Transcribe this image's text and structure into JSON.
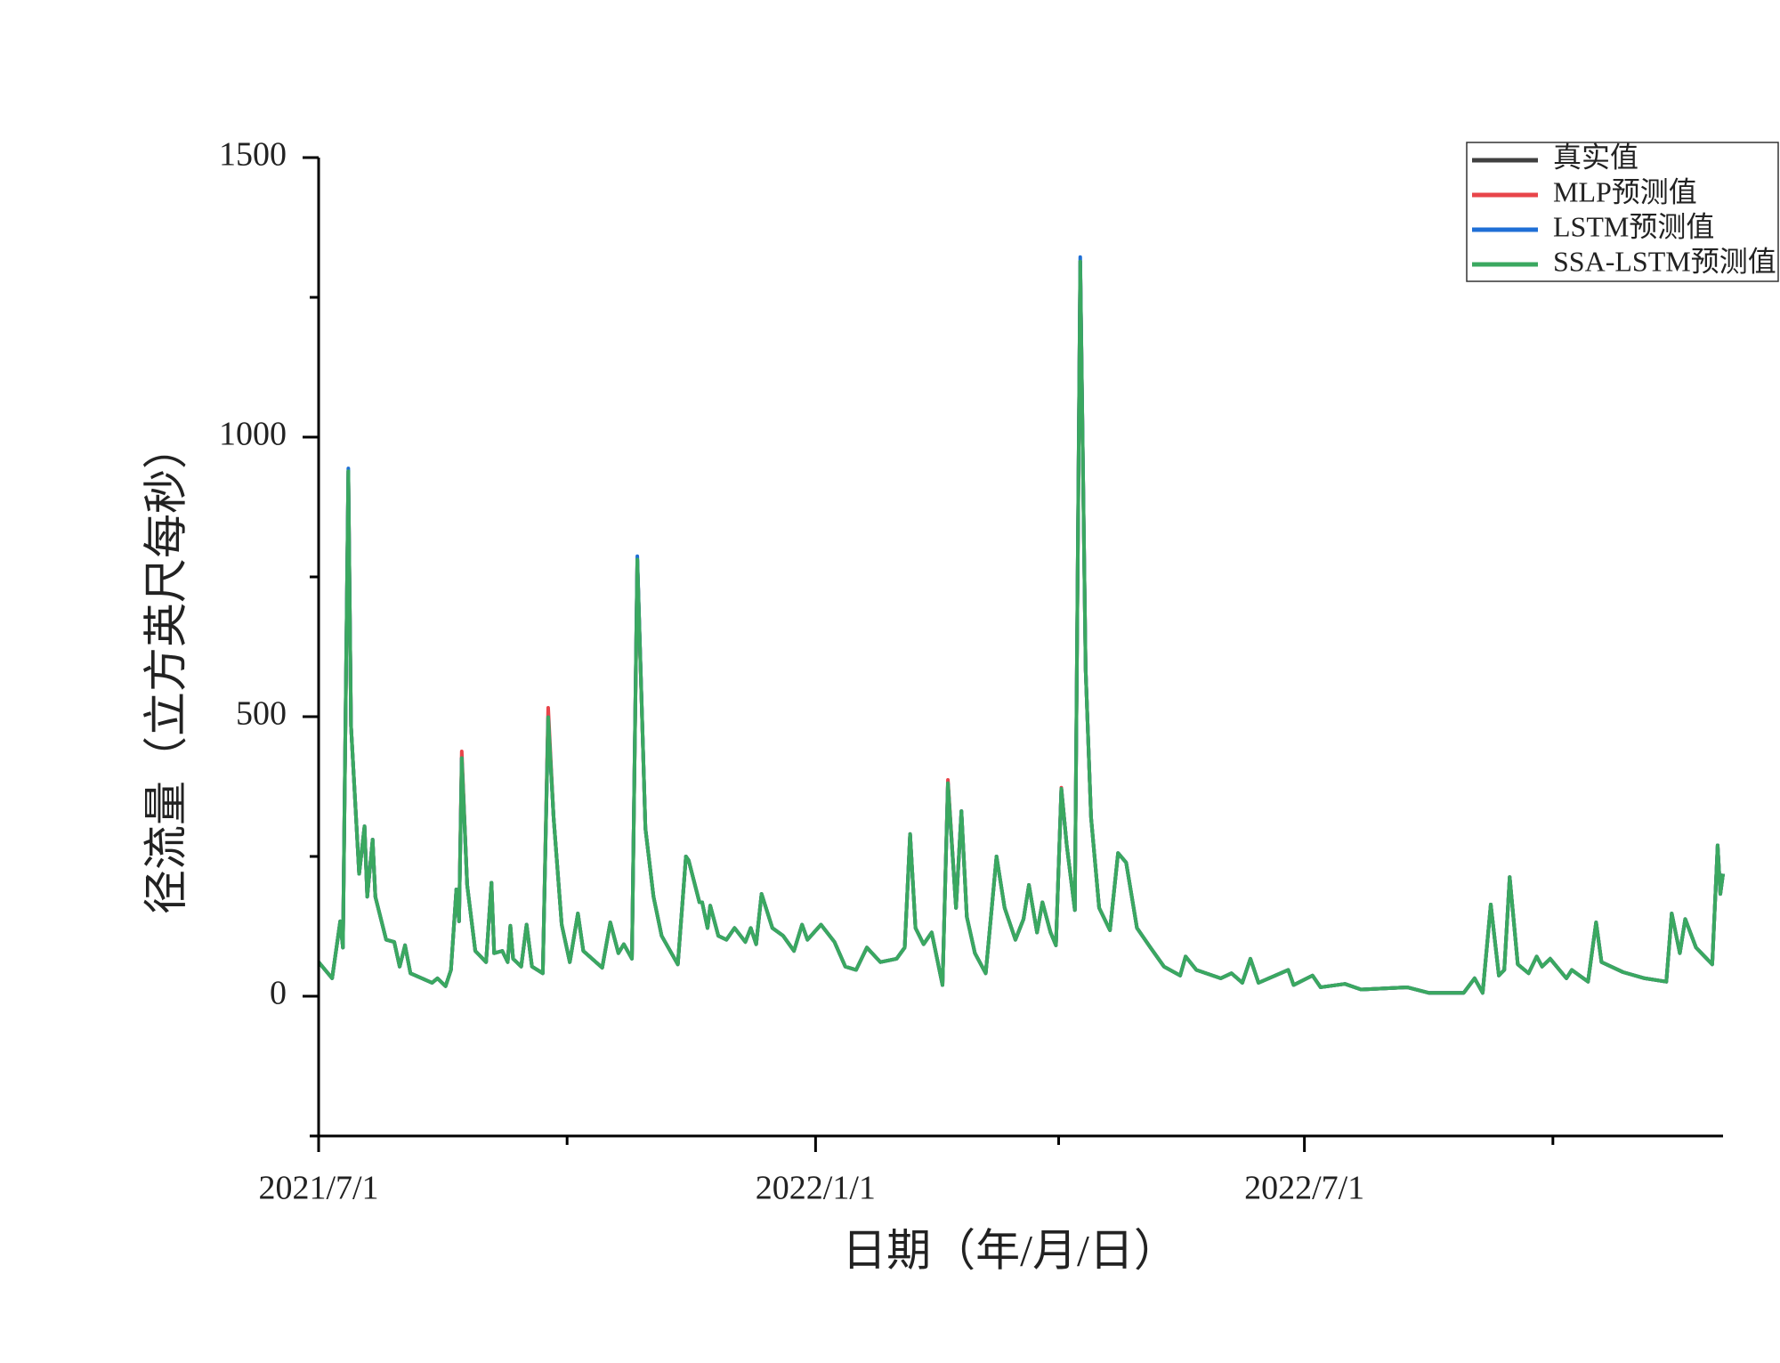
{
  "chart_data": {
    "type": "line",
    "x_label": "日期（年/月/日）",
    "y_label": "径流量（立方英尺每秒）",
    "x": [
      "2021/7/1",
      "2021/7/6",
      "2021/7/9",
      "2021/7/10",
      "2021/7/12",
      "2021/7/13",
      "2021/7/16",
      "2021/7/18",
      "2021/7/19",
      "2021/7/21",
      "2021/7/22",
      "2021/7/26",
      "2021/7/29",
      "2021/7/31",
      "2021/8/2",
      "2021/8/4",
      "2021/8/12",
      "2021/8/14",
      "2021/8/17",
      "2021/8/19",
      "2021/8/21",
      "2021/8/22",
      "2021/8/23",
      "2021/8/25",
      "2021/8/28",
      "2021/9/1",
      "2021/9/3",
      "2021/9/4",
      "2021/9/7",
      "2021/9/9",
      "2021/9/10",
      "2021/9/11",
      "2021/9/14",
      "2021/9/16",
      "2021/9/18",
      "2021/9/22",
      "2021/9/24",
      "2021/9/26",
      "2021/9/29",
      "2021/10/2",
      "2021/10/5",
      "2021/10/7",
      "2021/10/14",
      "2021/10/17",
      "2021/10/20",
      "2021/10/22",
      "2021/10/25",
      "2021/10/27",
      "2021/10/30",
      "2021/11/2",
      "2021/11/5",
      "2021/11/11",
      "2021/11/14",
      "2021/11/15",
      "2021/11/19",
      "2021/11/20",
      "2021/11/22",
      "2021/11/23",
      "2021/11/26",
      "2021/11/29",
      "2021/12/2",
      "2021/12/6",
      "2021/12/8",
      "2021/12/10",
      "2021/12/12",
      "2021/12/16",
      "2021/12/20",
      "2021/12/24",
      "2021/12/27",
      "2021/12/29",
      "2022/1/3",
      "2022/1/8",
      "2022/1/12",
      "2022/1/16",
      "2022/1/20",
      "2022/1/25",
      "2022/1/31",
      "2022/2/3",
      "2022/2/5",
      "2022/2/7",
      "2022/2/10",
      "2022/2/13",
      "2022/2/17",
      "2022/2/19",
      "2022/2/22",
      "2022/2/24",
      "2022/2/26",
      "2022/3/1",
      "2022/3/5",
      "2022/3/9",
      "2022/3/12",
      "2022/3/16",
      "2022/3/19",
      "2022/3/21",
      "2022/3/24",
      "2022/3/26",
      "2022/3/29",
      "2022/3/31",
      "2022/4/2",
      "2022/4/4",
      "2022/4/7",
      "2022/4/9",
      "2022/4/11",
      "2022/4/13",
      "2022/4/16",
      "2022/4/20",
      "2022/4/23",
      "2022/4/26",
      "2022/4/30",
      "2022/5/5",
      "2022/5/10",
      "2022/5/16",
      "2022/5/18",
      "2022/5/22",
      "2022/5/31",
      "2022/6/4",
      "2022/6/8",
      "2022/6/11",
      "2022/6/14",
      "2022/6/25",
      "2022/6/27",
      "2022/7/4",
      "2022/7/7",
      "2022/7/16",
      "2022/7/22",
      "2022/8/8",
      "2022/8/16",
      "2022/8/29",
      "2022/9/2",
      "2022/9/5",
      "2022/9/8",
      "2022/9/11",
      "2022/9/13",
      "2022/9/15",
      "2022/9/18",
      "2022/9/22",
      "2022/9/25",
      "2022/9/27",
      "2022/9/30",
      "2022/10/6",
      "2022/10/8",
      "2022/10/14",
      "2022/10/17",
      "2022/10/19",
      "2022/10/27",
      "2022/11/4",
      "2022/11/12",
      "2022/11/14",
      "2022/11/17",
      "2022/11/19",
      "2022/11/23",
      "2022/11/29",
      "2022/12/1",
      "2022/12/2",
      "2022/12/3"
    ],
    "series": [
      {
        "name": "真实值",
        "color": "#404040",
        "values": [
          61,
          32,
          134,
          87,
          939,
          483,
          219,
          304,
          178,
          280,
          178,
          101,
          97,
          53,
          91,
          41,
          24,
          32,
          18,
          47,
          191,
          134,
          426,
          199,
          81,
          61,
          203,
          77,
          81,
          61,
          126,
          67,
          53,
          128,
          53,
          41,
          499,
          320,
          128,
          61,
          148,
          81,
          51,
          132,
          77,
          93,
          67,
          781,
          300,
          178,
          108,
          57,
          250,
          243,
          168,
          168,
          122,
          162,
          108,
          101,
          122,
          97,
          122,
          93,
          183,
          122,
          108,
          81,
          128,
          101,
          128,
          97,
          53,
          47,
          87,
          61,
          67,
          87,
          290,
          122,
          93,
          114,
          20,
          381,
          158,
          331,
          142,
          77,
          41,
          250,
          158,
          101,
          138,
          199,
          114,
          168,
          114,
          91,
          371,
          270,
          154,
          1314,
          584,
          320,
          158,
          118,
          256,
          239,
          122,
          87,
          53,
          37,
          71,
          47,
          32,
          41,
          24,
          67,
          24,
          47,
          20,
          37,
          16,
          22,
          12,
          16,
          6,
          6,
          32,
          6,
          164,
          37,
          47,
          213,
          57,
          41,
          71,
          53,
          67,
          32,
          47,
          26,
          132,
          61,
          43,
          32,
          26,
          148,
          77,
          138,
          87,
          57,
          270,
          183,
          219
        ]
      },
      {
        "name": "MLP预测值",
        "color": "#e8454a",
        "values": [
          61,
          32,
          134,
          87,
          939,
          483,
          219,
          304,
          178,
          280,
          178,
          101,
          97,
          53,
          91,
          41,
          24,
          32,
          18,
          47,
          191,
          134,
          438,
          199,
          81,
          61,
          203,
          77,
          81,
          61,
          126,
          67,
          53,
          128,
          53,
          41,
          516,
          320,
          128,
          61,
          148,
          81,
          51,
          132,
          77,
          93,
          67,
          781,
          300,
          178,
          108,
          57,
          250,
          243,
          168,
          168,
          122,
          162,
          108,
          101,
          122,
          97,
          122,
          93,
          183,
          122,
          108,
          81,
          128,
          101,
          128,
          97,
          53,
          47,
          87,
          61,
          67,
          87,
          290,
          122,
          93,
          114,
          20,
          387,
          158,
          331,
          142,
          77,
          41,
          250,
          158,
          101,
          138,
          199,
          114,
          168,
          114,
          91,
          373,
          270,
          154,
          1314,
          584,
          320,
          158,
          118,
          256,
          239,
          122,
          87,
          53,
          37,
          71,
          47,
          32,
          41,
          24,
          67,
          24,
          47,
          20,
          37,
          16,
          22,
          12,
          16,
          6,
          6,
          32,
          6,
          164,
          37,
          47,
          213,
          57,
          41,
          71,
          53,
          67,
          32,
          47,
          26,
          132,
          61,
          43,
          32,
          26,
          148,
          77,
          138,
          87,
          57,
          270,
          183,
          219
        ]
      },
      {
        "name": "LSTM预测值",
        "color": "#1f6fd6",
        "values": [
          61,
          32,
          134,
          87,
          944,
          483,
          219,
          304,
          178,
          280,
          178,
          101,
          97,
          53,
          91,
          41,
          24,
          32,
          18,
          47,
          191,
          134,
          426,
          199,
          81,
          61,
          203,
          77,
          81,
          61,
          126,
          67,
          53,
          128,
          53,
          41,
          499,
          320,
          128,
          61,
          148,
          81,
          51,
          132,
          77,
          93,
          67,
          787,
          300,
          178,
          108,
          57,
          250,
          243,
          168,
          168,
          122,
          162,
          108,
          101,
          122,
          97,
          122,
          93,
          183,
          122,
          108,
          81,
          128,
          101,
          128,
          97,
          53,
          47,
          87,
          61,
          67,
          87,
          290,
          122,
          93,
          114,
          20,
          381,
          158,
          331,
          142,
          77,
          41,
          250,
          158,
          101,
          138,
          199,
          114,
          168,
          114,
          91,
          371,
          270,
          154,
          1322,
          584,
          320,
          158,
          118,
          256,
          239,
          122,
          87,
          53,
          37,
          71,
          47,
          32,
          41,
          24,
          67,
          24,
          47,
          20,
          37,
          16,
          22,
          12,
          16,
          6,
          6,
          32,
          6,
          164,
          37,
          47,
          213,
          57,
          41,
          71,
          53,
          67,
          32,
          47,
          26,
          132,
          61,
          43,
          32,
          26,
          148,
          77,
          138,
          87,
          57,
          270,
          183,
          219
        ]
      },
      {
        "name": "SSA-LSTM预测值",
        "color": "#3aa860",
        "values": [
          61,
          32,
          134,
          87,
          939,
          483,
          219,
          304,
          178,
          280,
          178,
          101,
          97,
          53,
          91,
          41,
          24,
          32,
          18,
          47,
          191,
          134,
          426,
          199,
          81,
          61,
          203,
          77,
          81,
          61,
          126,
          67,
          53,
          128,
          53,
          41,
          499,
          320,
          128,
          61,
          148,
          81,
          51,
          132,
          77,
          93,
          67,
          781,
          300,
          178,
          108,
          57,
          250,
          243,
          168,
          168,
          122,
          162,
          108,
          101,
          122,
          97,
          122,
          93,
          183,
          122,
          108,
          81,
          128,
          101,
          128,
          97,
          53,
          47,
          87,
          61,
          67,
          87,
          290,
          122,
          93,
          114,
          20,
          381,
          158,
          331,
          142,
          77,
          41,
          250,
          158,
          101,
          138,
          199,
          114,
          168,
          114,
          91,
          371,
          270,
          154,
          1314,
          584,
          320,
          158,
          118,
          256,
          239,
          122,
          87,
          53,
          37,
          71,
          47,
          32,
          41,
          24,
          67,
          24,
          47,
          20,
          37,
          16,
          22,
          12,
          16,
          6,
          6,
          32,
          6,
          164,
          37,
          47,
          213,
          57,
          41,
          71,
          53,
          67,
          32,
          47,
          26,
          132,
          61,
          43,
          32,
          26,
          148,
          77,
          138,
          87,
          57,
          270,
          183,
          219
        ]
      }
    ],
    "xlim": [
      "2021/7/1",
      "2022/12/3"
    ],
    "xticks": [
      "2021/7/1",
      "2022/1/1",
      "2022/7/1"
    ],
    "x_minor_ticks": [
      "2021/10/1",
      "2022/4/1",
      "2022/10/1"
    ],
    "ylim": [
      -250,
      1500
    ],
    "yticks": [
      0,
      500,
      1000,
      1500
    ],
    "y_minor_ticks": [
      -250,
      250,
      750,
      1250
    ],
    "legend": "upper right",
    "grid": false
  }
}
